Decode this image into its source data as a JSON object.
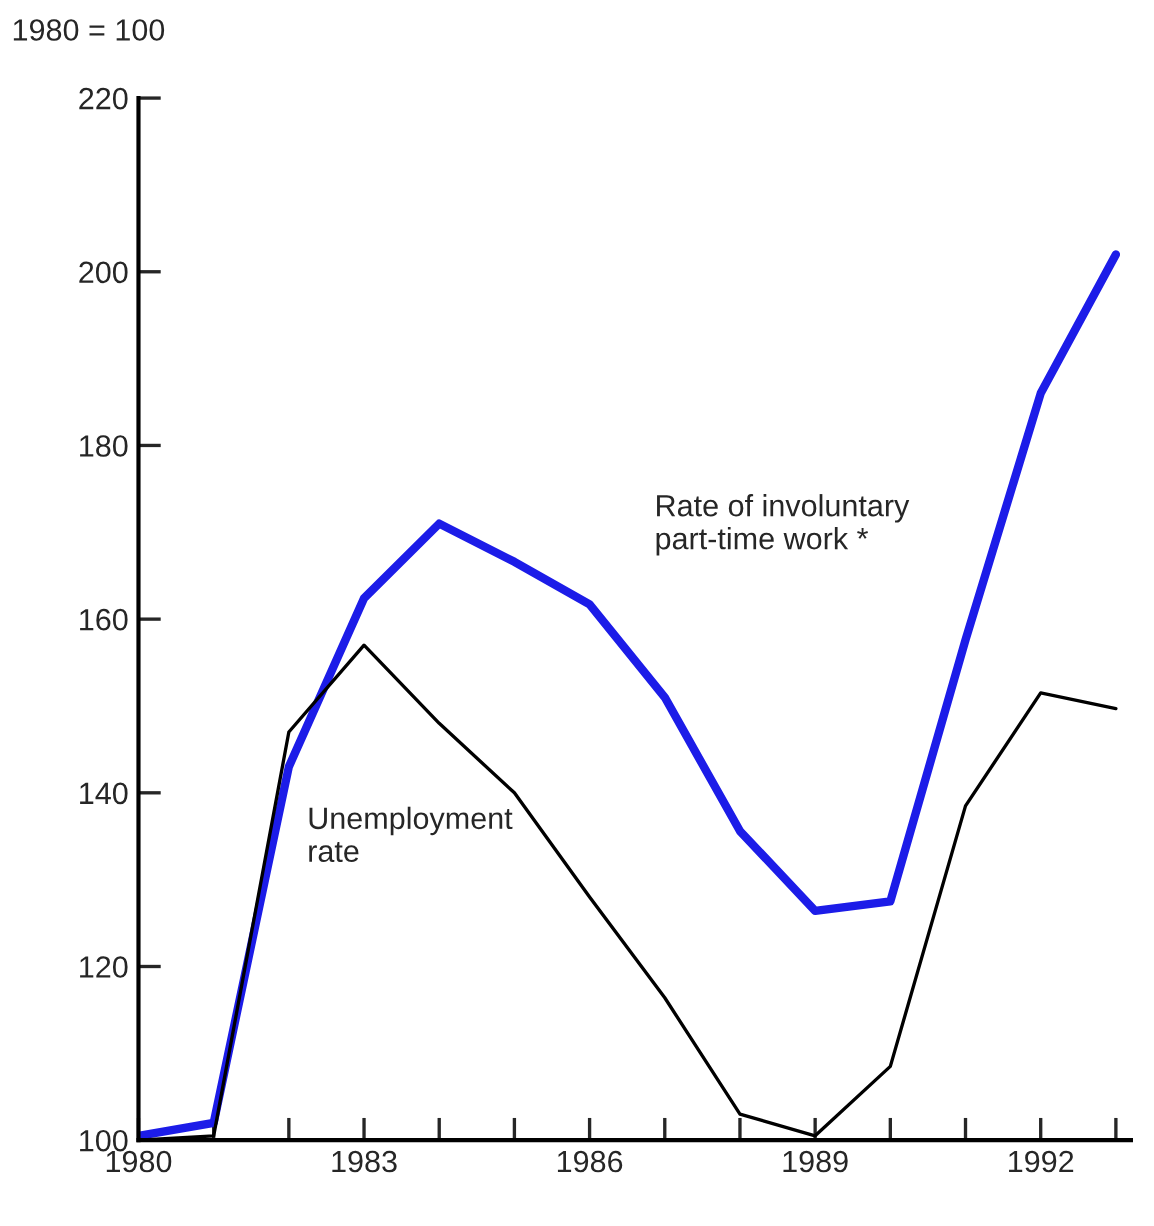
{
  "chart_data": {
    "type": "line",
    "ylabel": "1980 = 100",
    "x": [
      1980,
      1981,
      1982,
      1983,
      1984,
      1985,
      1986,
      1987,
      1988,
      1989,
      1990,
      1991,
      1992,
      1993
    ],
    "series": [
      {
        "name": "Rate of involuntary\npart-time work *",
        "color": "#1c1ce8",
        "values": [
          100.5,
          102,
          143,
          162.4,
          171,
          166.6,
          161.7,
          151,
          135.6,
          126.4,
          127.5,
          157.6,
          186,
          202
        ]
      },
      {
        "name": "Unemployment\nrate",
        "color": "#000000",
        "values": [
          100,
          100.5,
          147,
          157,
          148,
          140,
          128,
          116.4,
          103,
          100.5,
          108.5,
          138.5,
          151.5,
          149.7
        ]
      }
    ],
    "xlim": [
      1980,
      1993.2
    ],
    "xticks": [
      1980,
      {
        "value": 1981,
        "label": null
      },
      {
        "value": 1982,
        "label": null
      },
      1983,
      {
        "value": 1984,
        "label": null
      },
      {
        "value": 1985,
        "label": null
      },
      1986,
      {
        "value": 1987,
        "label": null
      },
      {
        "value": 1988,
        "label": null
      },
      1989,
      {
        "value": 1990,
        "label": null
      },
      {
        "value": 1991,
        "label": null
      },
      1992,
      {
        "value": 1993,
        "label": null
      }
    ],
    "ylim": [
      100,
      220
    ],
    "yticks": [
      100,
      120,
      140,
      160,
      180,
      200,
      220
    ],
    "grid": false,
    "legend": false,
    "marker": "none",
    "line_style": "solid"
  }
}
